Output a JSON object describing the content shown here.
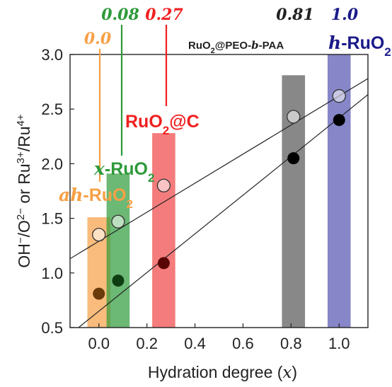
{
  "chart_data": {
    "type": "bar",
    "xlabel": "Hydration degree",
    "xlabel_var": "x",
    "ylabel": "OH−/O2− or Ru3+/Ru4+",
    "xlim": [
      -0.12,
      1.12
    ],
    "ylim": [
      0.5,
      3.0
    ],
    "x_ticks": [
      "0.0",
      "0.2",
      "0.4",
      "0.6",
      "0.8",
      "1.0"
    ],
    "y_ticks": [
      "0.5",
      "1.0",
      "1.5",
      "2.0",
      "2.5",
      "3.0"
    ],
    "grid": false,
    "samples": [
      {
        "key": "ah",
        "x": 0.0,
        "bar_top": 1.51,
        "open_value": 1.35,
        "filled_value": 0.81,
        "color": "#f7a045",
        "dot_color": "#6b3a0a",
        "label_text": "0.0",
        "name_prefix": "ah",
        "name_main": "-RuO",
        "name_sub": "2"
      },
      {
        "key": "x",
        "x": 0.08,
        "bar_top": 1.91,
        "open_value": 1.47,
        "filled_value": 0.93,
        "color": "#2e9a3a",
        "dot_color": "#0f3d12",
        "label_text": "0.08",
        "name_prefix": "x",
        "name_main": "-RuO",
        "name_sub": "2"
      },
      {
        "key": "c",
        "x": 0.27,
        "bar_top": 2.28,
        "open_value": 1.8,
        "filled_value": 1.09,
        "color": "#f04545",
        "dot_color": "#5a0606",
        "label_text": "0.27",
        "name_prefix": "",
        "name_main": "RuO",
        "name_sub": "2",
        "name_suffix": "@C"
      },
      {
        "key": "peo",
        "x": 0.81,
        "bar_top": 2.81,
        "open_value": 2.43,
        "filled_value": 2.05,
        "color": "#555555",
        "dot_color": "#000000",
        "label_text": "0.81",
        "name_prefix": "",
        "name_main": "RuO",
        "name_sub": "2",
        "name_suffix": "@PEO-",
        "name_italic": "b",
        "name_tail": "-PAA"
      },
      {
        "key": "h",
        "x": 1.0,
        "bar_top": 3.02,
        "open_value": 2.62,
        "filled_value": 2.4,
        "color": "#5252b0",
        "dot_color": "#000000",
        "label_text": "1.0",
        "name_prefix": "h",
        "name_main": "-RuO",
        "name_sub": "2"
      }
    ],
    "fit_lines": [
      {
        "name": "open",
        "intercept": 1.29,
        "slope": 1.33
      },
      {
        "name": "filled",
        "intercept": 0.65,
        "slope": 1.77
      }
    ],
    "colors": {
      "ah_label": "#f7a045",
      "x_label": "#2e9a3a",
      "c_label": "#f02020",
      "peo_label": "#222222",
      "h_label": "#1a1a8a"
    }
  }
}
